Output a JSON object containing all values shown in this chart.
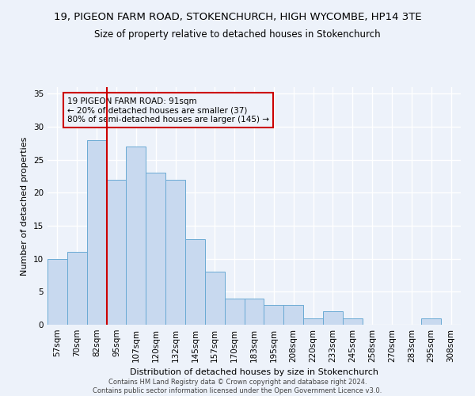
{
  "title_line1": "19, PIGEON FARM ROAD, STOKENCHURCH, HIGH WYCOMBE, HP14 3TE",
  "title_line2": "Size of property relative to detached houses in Stokenchurch",
  "xlabel": "Distribution of detached houses by size in Stokenchurch",
  "ylabel": "Number of detached properties",
  "footnote": "Contains HM Land Registry data © Crown copyright and database right 2024.\nContains public sector information licensed under the Open Government Licence v3.0.",
  "categories": [
    "57sqm",
    "70sqm",
    "82sqm",
    "95sqm",
    "107sqm",
    "120sqm",
    "132sqm",
    "145sqm",
    "157sqm",
    "170sqm",
    "183sqm",
    "195sqm",
    "208sqm",
    "220sqm",
    "233sqm",
    "245sqm",
    "258sqm",
    "270sqm",
    "283sqm",
    "295sqm",
    "308sqm"
  ],
  "values": [
    10,
    11,
    28,
    22,
    27,
    23,
    22,
    13,
    8,
    4,
    4,
    3,
    3,
    1,
    2,
    1,
    0,
    0,
    0,
    1,
    0
  ],
  "bar_color": "#c8d9ef",
  "bar_edge_color": "#6aaad4",
  "vline_x_index": 2,
  "vline_color": "#cc0000",
  "annotation_text": "19 PIGEON FARM ROAD: 91sqm\n← 20% of detached houses are smaller (37)\n80% of semi-detached houses are larger (145) →",
  "ylim": [
    0,
    36
  ],
  "yticks": [
    0,
    5,
    10,
    15,
    20,
    25,
    30,
    35
  ],
  "background_color": "#edf2fa",
  "grid_color": "#ffffff",
  "title_fontsize": 9.5,
  "subtitle_fontsize": 8.5,
  "axis_label_fontsize": 8,
  "tick_fontsize": 7.5,
  "annotation_fontsize": 7.5,
  "footnote_fontsize": 6
}
